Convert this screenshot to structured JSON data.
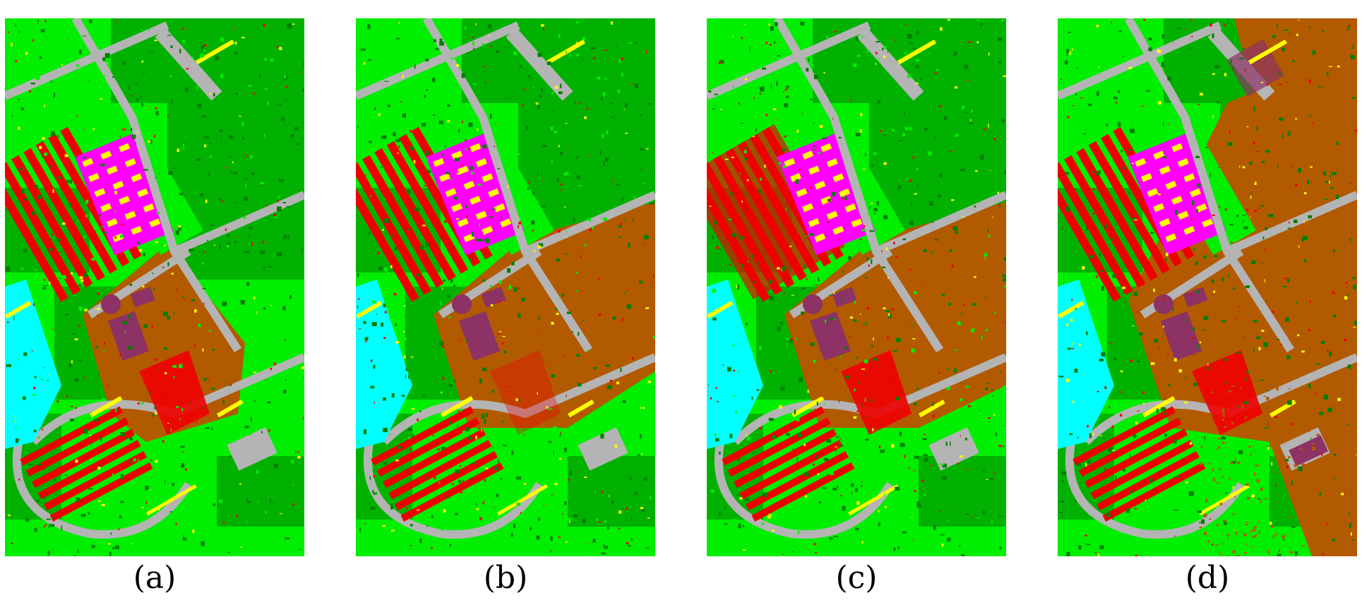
{
  "figure": {
    "panels": [
      {
        "label": "(a)",
        "variant": "a"
      },
      {
        "label": "(b)",
        "variant": "b"
      },
      {
        "label": "(c)",
        "variant": "c"
      },
      {
        "label": "(d)",
        "variant": "d"
      }
    ]
  },
  "palette": {
    "meadows": "#00ee00",
    "trees": "#007f00",
    "road": "#b4b4b4",
    "bare_soil": "#b25a00",
    "roof_red": "#ee0000",
    "metal_magenta": "#ff00ff",
    "shadow_yellow": "#ffff00",
    "bitumen_purple": "#8c3264",
    "water_cyan": "#00ffff"
  }
}
